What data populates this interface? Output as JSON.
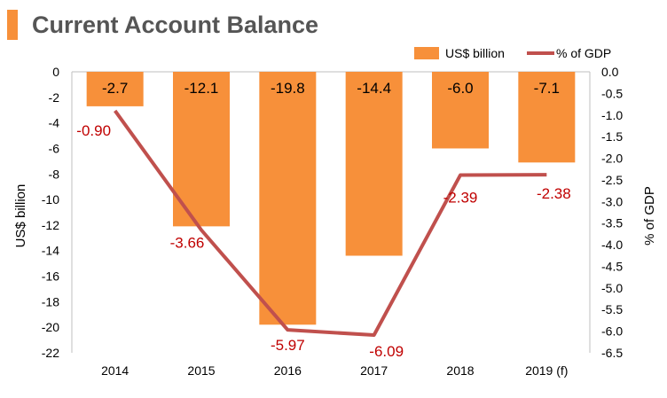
{
  "title": "Current Account Balance",
  "chart_data": {
    "type": "bar",
    "categories": [
      "2014",
      "2015",
      "2016",
      "2017",
      "2018",
      "2019 (f)"
    ],
    "series": [
      {
        "name": "US$ billion",
        "type": "bar",
        "axis": "left",
        "values": [
          -2.7,
          -12.1,
          -19.8,
          -14.4,
          -6.0,
          -7.1
        ],
        "labels": [
          "-2.7",
          "-12.1",
          "-19.8",
          "-14.4",
          "-6.0",
          "-7.1"
        ],
        "color": "#f7903a"
      },
      {
        "name": "% of GDP",
        "type": "line",
        "axis": "right",
        "values": [
          -0.9,
          -3.66,
          -5.97,
          -6.09,
          -2.39,
          -2.38
        ],
        "labels": [
          "-0.90",
          "-3.66",
          "-5.97",
          "-6.09",
          "-2.39",
          "-2.38"
        ],
        "color": "#c0504d"
      }
    ],
    "ylabel": "US$ billion",
    "y2label": "% of GDP",
    "ylim": [
      -22,
      0
    ],
    "y2lim": [
      -6.5,
      0
    ],
    "yticks": [
      "0",
      "-2",
      "-4",
      "-6",
      "-8",
      "-10",
      "-12",
      "-14",
      "-16",
      "-18",
      "-20",
      "-22"
    ],
    "y2ticks": [
      "0.0",
      "-0.5",
      "-1.0",
      "-1.5",
      "-2.0",
      "-2.5",
      "-3.0",
      "-3.5",
      "-4.0",
      "-4.5",
      "-5.0",
      "-5.5",
      "-6.0",
      "-6.5"
    ],
    "legend_position": "top-right",
    "grid": false,
    "line_label_color": "#c00000"
  }
}
